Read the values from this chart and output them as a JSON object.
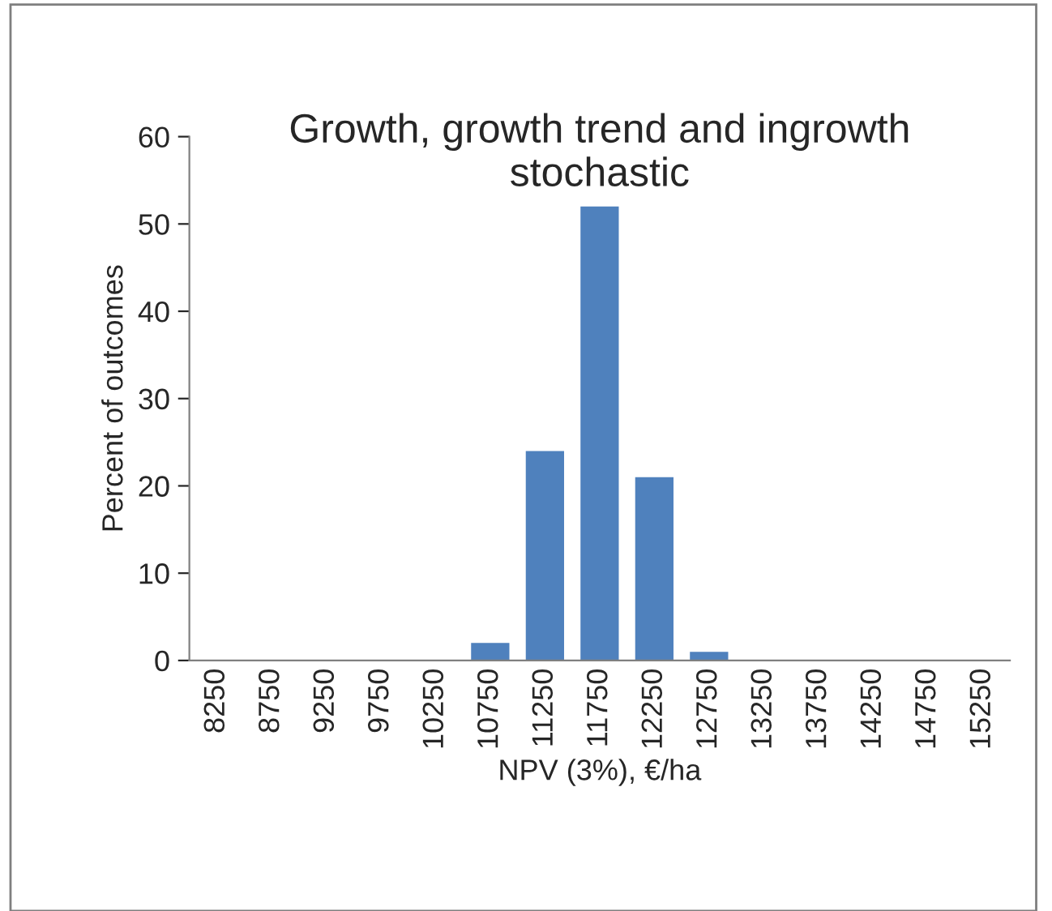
{
  "chart_data": {
    "type": "bar",
    "title": "Growth, growth trend and ingrowth\nstochastic",
    "xlabel": "NPV (3%), €/ha",
    "ylabel": "Percent of outcomes",
    "categories": [
      "8250",
      "8750",
      "9250",
      "9750",
      "10250",
      "10750",
      "11250",
      "11750",
      "12250",
      "12750",
      "13250",
      "13750",
      "14250",
      "14750",
      "15250"
    ],
    "values": [
      0,
      0,
      0,
      0,
      0,
      2,
      24,
      52,
      21,
      1,
      0,
      0,
      0,
      0,
      0
    ],
    "color": "#4f81bd",
    "ylim": [
      0,
      60
    ],
    "yticks": [
      0,
      10,
      20,
      30,
      40,
      50,
      60
    ],
    "grid": false,
    "legend": false
  }
}
